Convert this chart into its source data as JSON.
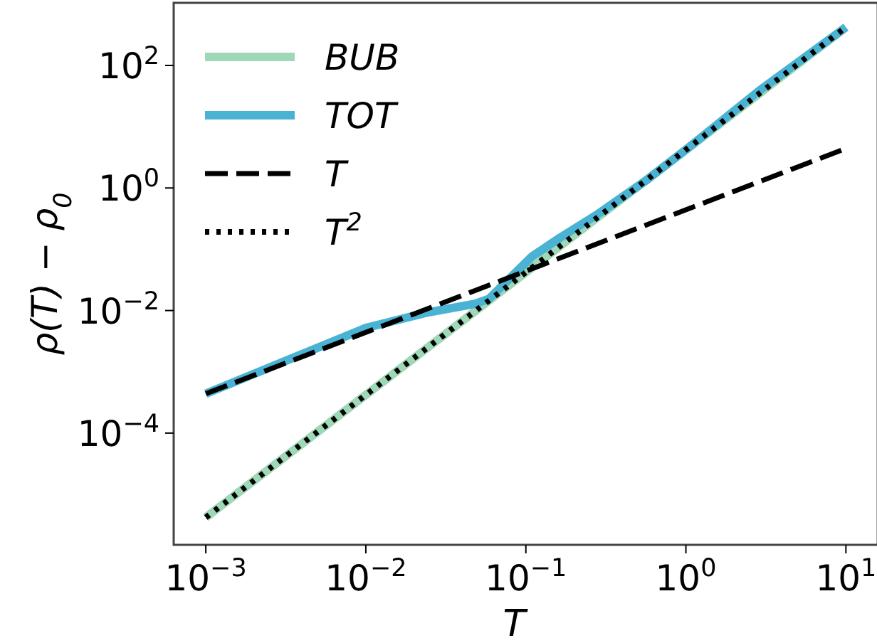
{
  "chart_data": {
    "type": "line",
    "xlabel": "T",
    "ylabel": "ρ(T) − ρ$_{0}$",
    "log": "xy",
    "legend": "top left",
    "xlim": [
      0.00063,
      15.8
    ],
    "ylim": [
      1.5e-06,
      1050
    ],
    "xticks": [
      {
        "value": 0.001,
        "label": "10$^{−3}$"
      },
      {
        "value": 0.01,
        "label": "10$^{−2}$"
      },
      {
        "value": 0.1,
        "label": "10$^{−1}$"
      },
      {
        "value": 1,
        "label": "10$^{0}$"
      },
      {
        "value": 10,
        "label": "10$^{1}$"
      }
    ],
    "yticks": [
      {
        "value": 0.0001,
        "label": "10$^{−4}$"
      },
      {
        "value": 0.01,
        "label": "10$^{−2}$"
      },
      {
        "value": 1,
        "label": "10$^{0}$"
      },
      {
        "value": 100,
        "label": "10$^{2}$"
      }
    ],
    "series": [
      {
        "name": "BUB",
        "color": "#9fd8b7",
        "line_style": "solid",
        "x": [
          0.001,
          10
        ],
        "values": [
          4.2e-06,
          420
        ]
      },
      {
        "name": "TOT",
        "color": "#4ab3d4",
        "line_style": "solid",
        "x": [
          0.001,
          0.01,
          0.0243,
          0.0481,
          0.0589,
          0.0776,
          0.109,
          0.164,
          0.284,
          0.562,
          1.04,
          2.88,
          10
        ],
        "values": [
          0.00044,
          0.0052,
          0.0093,
          0.0129,
          0.0155,
          0.0316,
          0.0759,
          0.155,
          0.38,
          1.32,
          4.57,
          38.9,
          420
        ]
      },
      {
        "name": "T",
        "color": "#000000",
        "line_style": "dashed",
        "x": [
          0.001,
          10
        ],
        "values": [
          0.00044,
          4.4
        ]
      },
      {
        "name": "T$^{2}$",
        "color": "#000000",
        "line_style": "dotted",
        "x": [
          0.001,
          10
        ],
        "values": [
          4.2e-06,
          420
        ]
      }
    ]
  }
}
